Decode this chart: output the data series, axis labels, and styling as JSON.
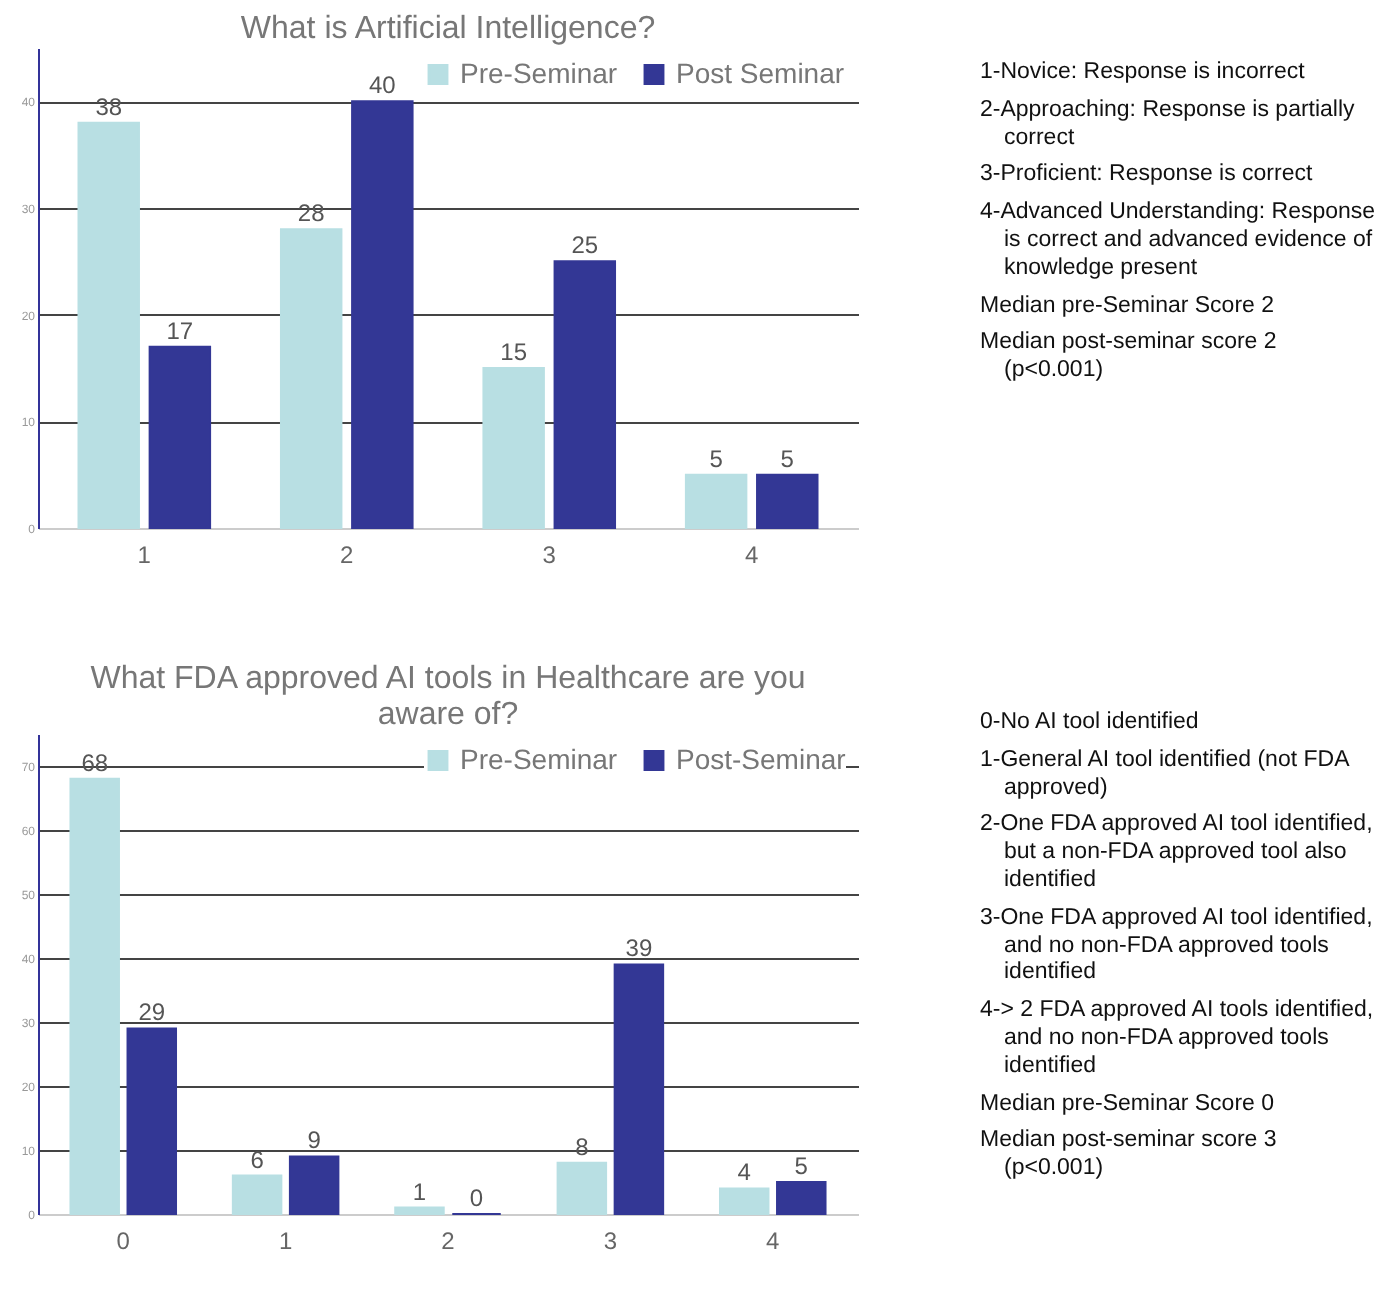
{
  "chart_data": [
    {
      "type": "bar",
      "title": "What is Artificial Intelligence?",
      "categories": [
        "1",
        "2",
        "3",
        "4"
      ],
      "series": [
        {
          "name": "Pre-Seminar",
          "color": "#b8dfe3",
          "values": [
            38,
            28,
            15,
            5
          ]
        },
        {
          "name": "Post Seminar",
          "color": "#333795",
          "values": [
            17,
            40,
            25,
            5
          ]
        }
      ],
      "ylim": [
        0,
        45
      ],
      "yticks": [
        0,
        10,
        20,
        30,
        40
      ],
      "grid": "y",
      "legend": "top right",
      "data_labels": true,
      "annotations": [
        "1-Novice: Response is incorrect",
        "2-Approaching: Response is partially correct",
        "3-Proficient: Response is correct",
        "4-Advanced Understanding: Response is correct and advanced evidence of knowledge present",
        "Median pre-Seminar Score 2",
        "Median post-seminar score 2 (p<0.001)"
      ]
    },
    {
      "type": "bar",
      "title": "What FDA approved AI tools in Healthcare are you aware of?",
      "categories": [
        "0",
        "1",
        "2",
        "3",
        "4"
      ],
      "series": [
        {
          "name": "Pre-Seminar",
          "color": "#b8dfe3",
          "values": [
            68,
            6,
            1,
            8,
            4
          ]
        },
        {
          "name": "Post-Seminar",
          "color": "#333795",
          "values": [
            29,
            9,
            0,
            39,
            5
          ]
        }
      ],
      "ylim": [
        0,
        75
      ],
      "yticks": [
        0,
        10,
        20,
        30,
        40,
        50,
        60,
        70
      ],
      "grid": "y",
      "legend": "top right",
      "data_labels": true,
      "annotations": [
        "0-No AI tool identified",
        "1-General AI tool identified (not FDA approved)",
        "2-One FDA approved AI tool identified, but a non-FDA approved tool also identified",
        "3-One FDA approved AI tool identified, and no non-FDA approved tools identified",
        "4-> 2 FDA approved AI tools identified, and no non-FDA approved tools identified",
        "Median pre-Seminar Score 0",
        "Median post-seminar score 3 (p<0.001)"
      ]
    }
  ]
}
